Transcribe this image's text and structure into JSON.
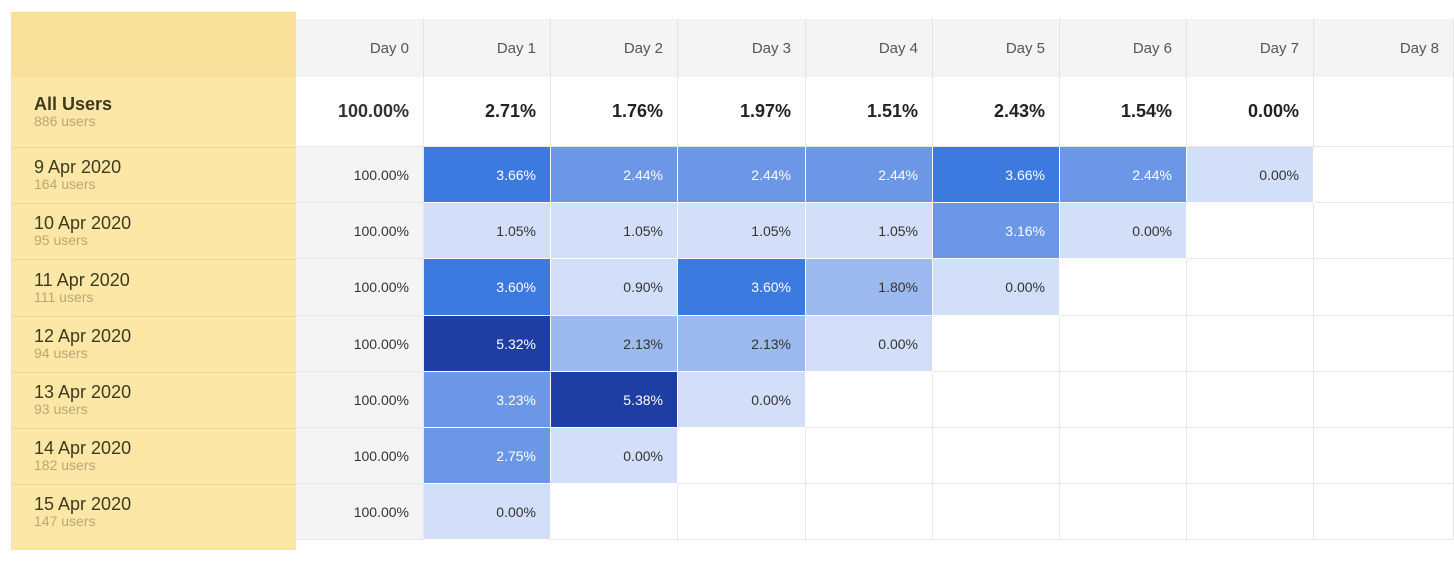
{
  "chart_data": {
    "type": "heatmap",
    "title": "",
    "xlabel": "",
    "ylabel": "",
    "columns": [
      "Day 0",
      "Day 1",
      "Day 2",
      "Day 3",
      "Day 4",
      "Day 5",
      "Day 6",
      "Day 7",
      "Day 8"
    ],
    "total": {
      "label": "All Users",
      "users": "886 users",
      "values": [
        "100.00%",
        "2.71%",
        "1.76%",
        "1.97%",
        "1.51%",
        "2.43%",
        "1.54%",
        "0.00%",
        ""
      ]
    },
    "rows": [
      {
        "label": "9 Apr 2020",
        "users": "164 users",
        "values": [
          100.0,
          3.66,
          2.44,
          2.44,
          2.44,
          3.66,
          2.44,
          0.0
        ]
      },
      {
        "label": "10 Apr 2020",
        "users": "95 users",
        "values": [
          100.0,
          1.05,
          1.05,
          1.05,
          1.05,
          3.16,
          0.0
        ]
      },
      {
        "label": "11 Apr 2020",
        "users": "111 users",
        "values": [
          100.0,
          3.6,
          0.9,
          3.6,
          1.8,
          0.0
        ]
      },
      {
        "label": "12 Apr 2020",
        "users": "94 users",
        "values": [
          100.0,
          5.32,
          2.13,
          2.13,
          0.0
        ]
      },
      {
        "label": "13 Apr 2020",
        "users": "93 users",
        "values": [
          100.0,
          3.23,
          5.38,
          0.0
        ]
      },
      {
        "label": "14 Apr 2020",
        "users": "182 users",
        "values": [
          100.0,
          2.75,
          0.0
        ]
      },
      {
        "label": "15 Apr 2020",
        "users": "147 users",
        "values": [
          100.0,
          0.0
        ]
      }
    ],
    "color_scale": [
      "#d3dff8",
      "#9dbaf0",
      "#6b97e6",
      "#3d7ae0",
      "#1e3ea4"
    ],
    "grid": true
  }
}
